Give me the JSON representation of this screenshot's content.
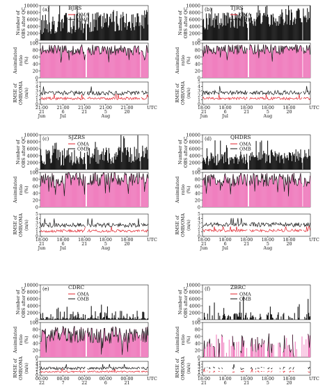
{
  "figure": {
    "colors": {
      "bars": "#1a1a1a",
      "ratio_fill": "#f07fbf",
      "ratio_line": "#111111",
      "omb": "#111111",
      "oma": "#e0202a"
    },
    "legend": [
      "OMA",
      "OMB"
    ],
    "ylabels": {
      "count": [
        "Number of",
        "OBS after QC"
      ],
      "ratio": [
        "Assimilated",
        "ratio",
        "(%)"
      ],
      "rmse": [
        "RMSE of",
        "OMB/OMA",
        "(m/s)"
      ]
    },
    "ticks": {
      "count": [
        "0",
        "2000",
        "4000",
        "6000",
        "8000",
        "10000"
      ],
      "ratio": [
        "0",
        "20",
        "40",
        "60",
        "80",
        "100"
      ],
      "rmse": [
        "0",
        "1",
        "2",
        "3",
        "4",
        "5"
      ]
    },
    "utc_label": "UTC"
  },
  "chart_data": [
    {
      "panel": "(a)",
      "station": "BJRS",
      "type": "bar+line",
      "time_labels": [
        [
          "21:00",
          "21",
          "Jun"
        ],
        [
          "21:00",
          "6",
          "Jul"
        ],
        [
          "21:00",
          "21",
          ""
        ],
        [
          "21:00",
          "5",
          "Aug"
        ],
        [
          "21:00",
          "20",
          ""
        ]
      ],
      "count_level": 6000,
      "count_var": 3000,
      "ratio_level": 80,
      "ratio_var": 15,
      "omb_level": 2.5,
      "oma_level": 1.3,
      "sparse": false
    },
    {
      "panel": "(b)",
      "station": "TJRS",
      "type": "bar+line",
      "time_labels": [
        [
          "18:00",
          "21",
          "Jun"
        ],
        [
          "18:00",
          "6",
          "Jul"
        ],
        [
          "18:00",
          "21",
          ""
        ],
        [
          "18:00",
          "5",
          "Aug"
        ],
        [
          "18:00",
          "20",
          ""
        ]
      ],
      "count_level": 7000,
      "count_var": 2500,
      "ratio_level": 82,
      "ratio_var": 15,
      "omb_level": 2.6,
      "oma_level": 1.3,
      "sparse": false
    },
    {
      "panel": "(c)",
      "station": "SJZRS",
      "type": "bar+line",
      "time_labels": [
        [
          "18:00",
          "21",
          "Jun"
        ],
        [
          "18:00",
          "6",
          "Jul"
        ],
        [
          "18:00",
          "21",
          ""
        ],
        [
          "18:00",
          "5",
          "Aug"
        ],
        [
          "18:00",
          "20",
          ""
        ]
      ],
      "count_level": 4500,
      "count_var": 2500,
      "ratio_level": 80,
      "ratio_var": 20,
      "omb_level": 2.5,
      "oma_level": 1.2,
      "sparse": false
    },
    {
      "panel": "(d)",
      "station": "QHDRS",
      "type": "bar+line",
      "time_labels": [
        [
          "18:00",
          "21",
          "Jun"
        ],
        [
          "18:00",
          "6",
          "Jul"
        ],
        [
          "18:00",
          "21",
          ""
        ],
        [
          "18:00",
          "5",
          "Aug"
        ],
        [
          "18:00",
          "20",
          ""
        ]
      ],
      "count_level": 4000,
      "count_var": 2000,
      "ratio_level": 78,
      "ratio_var": 20,
      "omb_level": 2.6,
      "oma_level": 1.3,
      "sparse": false
    },
    {
      "panel": "(e)",
      "station": "CDRC",
      "type": "bar+line",
      "time_labels": [
        [
          "00:00",
          "22",
          "Jun"
        ],
        [
          "00:00",
          "7",
          "Jul"
        ],
        [
          "00:00",
          "22",
          ""
        ],
        [
          "00:00",
          "6",
          "Aug"
        ],
        [
          "00:00",
          "21",
          ""
        ]
      ],
      "count_level": 1500,
      "count_var": 1200,
      "ratio_level": 65,
      "ratio_var": 25,
      "omb_level": 2.5,
      "oma_level": 1.3,
      "sparse": false
    },
    {
      "panel": "(f)",
      "station": "ZBRC",
      "type": "bar+line",
      "time_labels": [
        [
          "18:00",
          "21",
          "Jun"
        ],
        [
          "18:00",
          "6",
          "Jul"
        ],
        [
          "18:00",
          "21",
          ""
        ],
        [
          "18:00",
          "5",
          "Aug"
        ],
        [
          "18:00",
          "20",
          ""
        ]
      ],
      "count_level": 1200,
      "count_var": 1500,
      "ratio_level": 40,
      "ratio_var": 30,
      "omb_level": 2.5,
      "oma_level": 1.3,
      "sparse": true
    }
  ]
}
